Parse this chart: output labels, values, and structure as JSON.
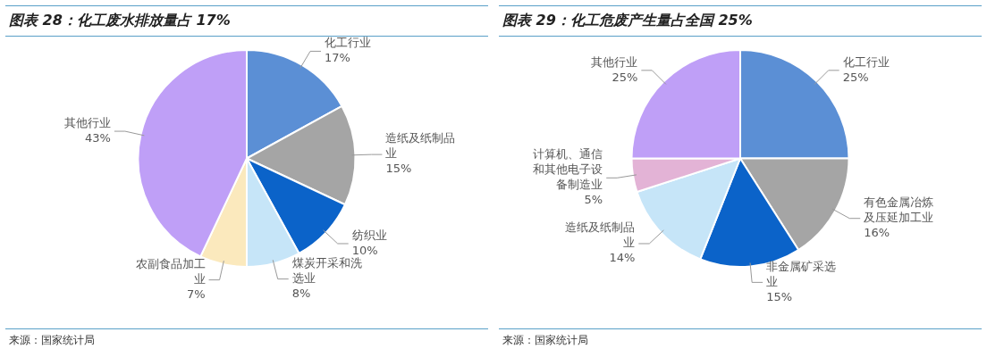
{
  "chart_data": [
    {
      "type": "pie",
      "title": "图表 28：化工废水排放量占 17%",
      "categories": [
        "化工行业",
        "造纸及纸制品业",
        "纺织业",
        "煤炭开采和洗选业",
        "农副食品加工业",
        "其他行业"
      ],
      "values": [
        17,
        15,
        10,
        8,
        7,
        43
      ],
      "value_labels": [
        "17%",
        "15%",
        "10%",
        "8%",
        "7%",
        "43%"
      ],
      "colors": [
        "#5b8fd5",
        "#a5a5a5",
        "#0b63c9",
        "#c6e5f8",
        "#fbe9bd",
        "#bf9ff7"
      ],
      "legend": false,
      "annotations": [
        "来源：国家统计局"
      ]
    },
    {
      "type": "pie",
      "title": "图表 29：化工危废产生量占全国 25%",
      "categories": [
        "化工行业",
        "有色金属冶炼及压延加工业",
        "非金属矿采选业",
        "造纸及纸制品业",
        "计算机、通信和其他电子设备制造业",
        "其他行业"
      ],
      "values": [
        25,
        16,
        15,
        14,
        5,
        25
      ],
      "value_labels": [
        "25%",
        "16%",
        "15%",
        "14%",
        "5%",
        "25%"
      ],
      "colors": [
        "#5b8fd5",
        "#a5a5a5",
        "#0b63c9",
        "#c6e5f8",
        "#e3b3d6",
        "#bf9ff7"
      ],
      "legend": false,
      "annotations": [
        "来源：国家统计局"
      ]
    }
  ]
}
